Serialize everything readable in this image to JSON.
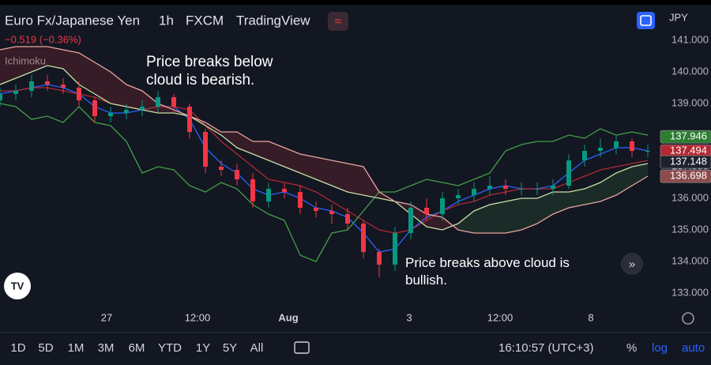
{
  "header": {
    "symbol": "Euro Fx/Japanese Yen",
    "interval": "1h",
    "exchange": "FXCM",
    "source": "TradingView",
    "change": "−0.519 (−0.36%)",
    "indicator": "Ichimoku",
    "currency": "JPY"
  },
  "chart_data": {
    "type": "candlestick",
    "x": [
      0,
      2,
      4,
      6,
      8,
      10,
      12,
      14,
      16,
      18,
      20,
      22,
      24,
      26,
      28,
      30,
      32,
      34,
      36,
      38,
      40,
      42,
      44,
      46,
      48,
      50,
      52,
      54,
      56,
      58,
      60,
      62,
      64,
      66,
      68,
      70,
      72,
      74,
      76,
      78,
      80,
      82
    ],
    "open": [
      139.1,
      139.3,
      139.4,
      139.7,
      139.6,
      139.5,
      139.1,
      138.6,
      138.7,
      138.8,
      138.9,
      139.2,
      138.9,
      138.1,
      137.0,
      136.9,
      136.6,
      135.9,
      136.3,
      136.2,
      135.7,
      135.6,
      135.5,
      135.2,
      134.3,
      133.9,
      134.9,
      135.7,
      135.5,
      136.0,
      136.1,
      136.3,
      136.4,
      136.3,
      136.3,
      136.3,
      136.4,
      137.2,
      137.5,
      137.6,
      137.8,
      137.5
    ],
    "high": [
      139.5,
      139.6,
      139.9,
      139.9,
      139.8,
      139.7,
      139.2,
      138.9,
      139.0,
      139.1,
      139.4,
      139.3,
      139.0,
      138.2,
      137.2,
      137.1,
      136.8,
      136.5,
      136.5,
      136.4,
      135.9,
      135.8,
      135.7,
      135.3,
      134.4,
      135.1,
      135.9,
      136.0,
      136.2,
      136.3,
      136.5,
      136.7,
      136.6,
      136.5,
      136.5,
      136.6,
      137.4,
      137.7,
      137.9,
      138.0,
      137.9,
      137.7
    ],
    "low": [
      138.9,
      139.1,
      139.2,
      139.4,
      139.3,
      138.9,
      138.4,
      138.4,
      138.5,
      138.6,
      138.7,
      138.7,
      137.9,
      136.8,
      136.7,
      136.4,
      135.7,
      135.7,
      136.0,
      135.5,
      135.4,
      135.2,
      135.0,
      134.1,
      133.5,
      133.7,
      134.7,
      135.3,
      135.3,
      135.8,
      135.9,
      136.1,
      136.1,
      136.1,
      136.1,
      136.1,
      136.3,
      137.0,
      137.3,
      137.4,
      137.3,
      137.3
    ],
    "close": [
      139.3,
      139.4,
      139.7,
      139.6,
      139.5,
      139.1,
      138.6,
      138.7,
      138.8,
      138.9,
      139.2,
      138.9,
      138.1,
      137.0,
      136.9,
      136.6,
      135.9,
      136.3,
      136.2,
      135.7,
      135.6,
      135.5,
      135.2,
      134.3,
      133.9,
      134.9,
      135.7,
      135.5,
      136.0,
      136.1,
      136.3,
      136.4,
      136.3,
      136.3,
      136.3,
      136.4,
      137.2,
      137.5,
      137.6,
      137.8,
      137.5,
      137.5
    ],
    "up_color": "#089981",
    "down_color": "#f23645",
    "overlays": [
      {
        "color": "#2962ff",
        "values": [
          139.3,
          139.4,
          139.5,
          139.6,
          139.5,
          139.3,
          138.9,
          138.7,
          138.7,
          138.8,
          138.9,
          138.9,
          138.5,
          137.6,
          137.1,
          136.8,
          136.3,
          136.1,
          136.2,
          136.0,
          135.7,
          135.6,
          135.4,
          134.9,
          134.3,
          134.4,
          135.0,
          135.4,
          135.6,
          135.9,
          136.1,
          136.3,
          136.4,
          136.3,
          136.3,
          136.4,
          136.8,
          137.2,
          137.4,
          137.6,
          137.6,
          137.5
        ]
      },
      {
        "color": "#b22833",
        "values": [
          139.4,
          139.4,
          139.5,
          139.5,
          139.4,
          139.3,
          139.2,
          139.0,
          138.9,
          138.8,
          138.9,
          138.9,
          138.8,
          138.3,
          137.8,
          137.4,
          137.0,
          136.6,
          136.5,
          136.4,
          136.2,
          135.9,
          135.6,
          135.3,
          135.0,
          134.9,
          135.0,
          135.3,
          135.6,
          135.8,
          135.9,
          136.1,
          136.2,
          136.3,
          136.3,
          136.3,
          136.5,
          136.7,
          136.9,
          137.0,
          137.1,
          137.2
        ]
      },
      {
        "color": "#43a047",
        "values": [
          139.0,
          138.9,
          138.5,
          138.6,
          138.4,
          138.9,
          138.4,
          138.3,
          137.8,
          136.8,
          137.0,
          136.9,
          136.4,
          136.2,
          136.5,
          136.3,
          135.8,
          135.5,
          135.3,
          134.2,
          134.0,
          134.9,
          135.0,
          135.6,
          136.2,
          136.2,
          136.4,
          136.6,
          136.5,
          136.4,
          136.6,
          136.8,
          137.5,
          137.7,
          137.8,
          137.8,
          138.0,
          137.9,
          138.2,
          138.0,
          138.1,
          138.0
        ]
      },
      {
        "color": "#c5e1a5",
        "values": [
          139.6,
          139.8,
          140.0,
          140.2,
          140.1,
          139.6,
          139.3,
          139.0,
          138.9,
          138.8,
          138.7,
          138.7,
          138.6,
          138.3,
          138.0,
          137.6,
          137.4,
          137.2,
          137.0,
          136.8,
          136.6,
          136.4,
          136.2,
          136.1,
          136.0,
          135.9,
          135.5,
          135.1,
          135.0,
          135.2,
          135.6,
          135.8,
          135.9,
          136.0,
          136.0,
          136.2,
          136.2,
          136.3,
          136.5,
          136.8,
          137.0,
          137.1
        ]
      },
      {
        "color": "#e8a5a0",
        "values": [
          140.7,
          140.8,
          140.8,
          140.8,
          140.7,
          140.6,
          140.3,
          140.0,
          139.6,
          139.4,
          139.0,
          138.8,
          138.6,
          138.4,
          138.1,
          138.1,
          137.8,
          137.8,
          137.6,
          137.4,
          137.3,
          137.2,
          137.1,
          137.0,
          136.2,
          135.9,
          135.8,
          135.5,
          135.4,
          135.0,
          134.9,
          134.9,
          134.9,
          135.0,
          135.2,
          135.5,
          135.7,
          135.8,
          135.9,
          136.1,
          136.4,
          136.7
        ]
      }
    ],
    "cloud_up_color": "rgba(76,175,80,0.14)",
    "cloud_down_color": "rgba(242,54,69,0.16)",
    "xlim": [
      0,
      83.5
    ],
    "xticks": [
      {
        "value": 13.5,
        "label": "27"
      },
      {
        "value": 25,
        "label": "12:00"
      },
      {
        "value": 36.5,
        "label": "Aug"
      },
      {
        "value": 51.8,
        "label": "3"
      },
      {
        "value": 63.3,
        "label": "12:00"
      },
      {
        "value": 74.8,
        "label": "8"
      }
    ],
    "ylim": [
      132.5,
      141.3
    ],
    "yticks": [
      {
        "value": 133,
        "label": "133.000"
      },
      {
        "value": 134,
        "label": "134.000"
      },
      {
        "value": 135,
        "label": "135.000"
      },
      {
        "value": 136,
        "label": "136.000"
      },
      {
        "value": 137,
        "label": "137.000"
      },
      {
        "value": 138,
        "label": "138.000"
      },
      {
        "value": 139,
        "label": "139.000"
      },
      {
        "value": 140,
        "label": "140.000"
      },
      {
        "value": 141,
        "label": "141.000"
      }
    ],
    "last_values": [
      {
        "value": 137.946,
        "color": "#2e7d32"
      },
      {
        "value": 137.494,
        "color": "#b22833"
      },
      {
        "value": 137.148,
        "color": "#1e222d"
      },
      {
        "value": 136.698,
        "color": "#8d4b4b"
      }
    ],
    "annotations": [
      "Price breaks below cloud is bearish.",
      "Price breaks above cloud is bullish."
    ]
  },
  "toolbar": {
    "ranges": [
      "1D",
      "5D",
      "1M",
      "3M",
      "6M",
      "YTD",
      "1Y",
      "5Y",
      "All"
    ],
    "clock": "16:10:57 (UTC+3)",
    "percent": "%",
    "log": "log",
    "auto": "auto"
  }
}
